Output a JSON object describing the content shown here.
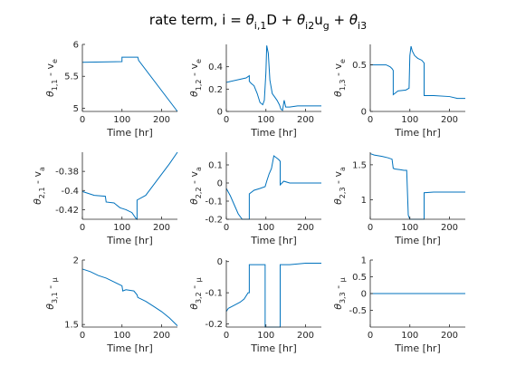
{
  "title": {
    "text": "rate term, i = ",
    "theta1": "θ",
    "sub1": "i,1",
    "mid1": "D + ",
    "theta2": "θ",
    "sub2": "i2",
    "mid2": "u",
    "sub3": "g",
    "mid3": " + ",
    "theta3": "θ",
    "sub4": "i3"
  },
  "line_color": "#0072bd",
  "chart_data": [
    {
      "type": "line",
      "xlabel": "Time [hr]",
      "ylabel": {
        "theta": "θ",
        "sub": "1,1",
        "rest": " - v",
        "tail": "e"
      },
      "xlim": [
        0,
        240
      ],
      "ylim": [
        4.95,
        6.0
      ],
      "xticks": [
        0,
        100,
        200
      ],
      "yticks": [
        5,
        5.5,
        6
      ],
      "ytick_labels": [
        "5",
        "5.5",
        "6"
      ],
      "x": [
        0,
        100,
        100,
        105,
        140,
        142,
        240
      ],
      "y": [
        5.72,
        5.73,
        5.8,
        5.8,
        5.8,
        5.75,
        4.95
      ]
    },
    {
      "type": "line",
      "xlabel": "Time [hr]",
      "ylabel": {
        "theta": "θ",
        "sub": "1,2",
        "rest": " - v",
        "tail": "e"
      },
      "xlim": [
        0,
        240
      ],
      "ylim": [
        0,
        0.6
      ],
      "xticks": [
        0,
        100,
        200
      ],
      "yticks": [
        0,
        0.2,
        0.4
      ],
      "ytick_labels": [
        "0",
        "0.2",
        "0.4"
      ],
      "x": [
        0,
        50,
        58,
        58,
        63,
        70,
        78,
        85,
        92,
        96,
        100,
        102,
        106,
        110,
        116,
        122,
        128,
        134,
        138,
        142,
        146,
        150,
        160,
        180,
        200,
        220,
        240
      ],
      "y": [
        0.26,
        0.3,
        0.32,
        0.27,
        0.25,
        0.23,
        0.16,
        0.08,
        0.06,
        0.1,
        0.35,
        0.59,
        0.52,
        0.28,
        0.16,
        0.13,
        0.1,
        0.06,
        0.02,
        0.01,
        0.1,
        0.04,
        0.04,
        0.05,
        0.05,
        0.05,
        0.05
      ]
    },
    {
      "type": "line",
      "xlabel": "Time [hr]",
      "ylabel": {
        "theta": "θ",
        "sub": "1,3",
        "rest": " - v",
        "tail": "e"
      },
      "xlim": [
        0,
        240
      ],
      "ylim": [
        0,
        0.72
      ],
      "xticks": [
        0,
        100,
        200
      ],
      "yticks": [
        0,
        0.5
      ],
      "ytick_labels": [
        "0",
        "0.5"
      ],
      "x": [
        0,
        40,
        50,
        55,
        58,
        58,
        70,
        90,
        98,
        100,
        103,
        106,
        112,
        120,
        130,
        136,
        136,
        160,
        200,
        220,
        240
      ],
      "y": [
        0.5,
        0.5,
        0.48,
        0.46,
        0.44,
        0.18,
        0.22,
        0.23,
        0.25,
        0.6,
        0.7,
        0.65,
        0.6,
        0.57,
        0.55,
        0.52,
        0.17,
        0.17,
        0.16,
        0.14,
        0.14
      ]
    },
    {
      "type": "line",
      "xlabel": "Time [hr]",
      "ylabel": {
        "theta": "θ",
        "sub": "2,1",
        "rest": " - v",
        "tail": "a"
      },
      "xlim": [
        0,
        240
      ],
      "ylim": [
        -0.43,
        -0.36
      ],
      "xticks": [
        0,
        100,
        200
      ],
      "yticks": [
        -0.42,
        -0.4,
        -0.38
      ],
      "ytick_labels": [
        "-0.42",
        "-0.4",
        "-0.38"
      ],
      "x": [
        0,
        30,
        58,
        60,
        80,
        95,
        110,
        125,
        135,
        138,
        138,
        160,
        180,
        200,
        220,
        240
      ],
      "y": [
        -0.401,
        -0.405,
        -0.406,
        -0.412,
        -0.413,
        -0.418,
        -0.42,
        -0.423,
        -0.429,
        -0.43,
        -0.41,
        -0.405,
        -0.394,
        -0.383,
        -0.372,
        -0.36
      ]
    },
    {
      "type": "line",
      "xlabel": "Time [hr]",
      "ylabel": {
        "theta": "θ",
        "sub": "2,2",
        "rest": " - v",
        "tail": "a"
      },
      "xlim": [
        0,
        240
      ],
      "ylim": [
        -0.2,
        0.17
      ],
      "xticks": [
        0,
        100,
        200
      ],
      "yticks": [
        -0.2,
        -0.1,
        0,
        0.1
      ],
      "ytick_labels": [
        "-0.2",
        "-0.1",
        "0",
        "0.1"
      ],
      "x": [
        0,
        10,
        20,
        30,
        40,
        50,
        58,
        58,
        70,
        85,
        98,
        102,
        108,
        114,
        120,
        126,
        132,
        136,
        136,
        145,
        160,
        180,
        200,
        220,
        240
      ],
      "y": [
        -0.03,
        -0.07,
        -0.12,
        -0.17,
        -0.2,
        -0.2,
        -0.2,
        -0.06,
        -0.04,
        -0.03,
        -0.02,
        0.01,
        0.05,
        0.08,
        0.15,
        0.14,
        0.13,
        0.12,
        -0.01,
        0.01,
        0.0,
        0.0,
        0.0,
        0.0,
        0.0
      ]
    },
    {
      "type": "line",
      "xlabel": "Time [hr]",
      "ylabel": {
        "theta": "θ",
        "sub": "2,3",
        "rest": " - v",
        "tail": "a"
      },
      "xlim": [
        0,
        240
      ],
      "ylim": [
        0.72,
        1.68
      ],
      "xticks": [
        0,
        100,
        200
      ],
      "yticks": [
        1,
        1.5
      ],
      "ytick_labels": [
        "1",
        "1.5"
      ],
      "x": [
        0,
        10,
        30,
        45,
        55,
        58,
        62,
        75,
        85,
        92,
        96,
        100,
        104,
        120,
        136,
        136,
        160,
        200,
        240
      ],
      "y": [
        1.66,
        1.64,
        1.62,
        1.6,
        1.58,
        1.45,
        1.44,
        1.43,
        1.42,
        1.42,
        0.78,
        0.72,
        0.72,
        0.72,
        0.72,
        1.1,
        1.11,
        1.11,
        1.11
      ]
    },
    {
      "type": "line",
      "xlabel": "Time [hr]",
      "ylabel": {
        "theta": "θ",
        "sub": "3,1",
        "rest": " - ",
        "tail": "μ"
      },
      "xlim": [
        0,
        240
      ],
      "ylim": [
        1.48,
        2.0
      ],
      "xticks": [
        0,
        100,
        200
      ],
      "yticks": [
        1.5,
        2
      ],
      "ytick_labels": [
        "1.5",
        "2"
      ],
      "x": [
        0,
        20,
        40,
        60,
        80,
        100,
        102,
        110,
        130,
        138,
        140,
        160,
        180,
        200,
        220,
        240
      ],
      "y": [
        1.93,
        1.91,
        1.88,
        1.86,
        1.83,
        1.8,
        1.76,
        1.77,
        1.76,
        1.73,
        1.71,
        1.68,
        1.64,
        1.6,
        1.55,
        1.49
      ]
    },
    {
      "type": "line",
      "xlabel": "Time [hr]",
      "ylabel": {
        "theta": "θ",
        "sub": "3,2",
        "rest": " - ",
        "tail": "μ"
      },
      "xlim": [
        0,
        240
      ],
      "ylim": [
        -0.21,
        0.005
      ],
      "xticks": [
        0,
        100,
        200
      ],
      "yticks": [
        -0.2,
        -0.1,
        0
      ],
      "ytick_labels": [
        "-0.2",
        "-0.1",
        "0"
      ],
      "x": [
        0,
        5,
        20,
        35,
        45,
        55,
        58,
        58,
        80,
        98,
        98,
        110,
        120,
        130,
        136,
        136,
        160,
        200,
        240
      ],
      "y": [
        -0.16,
        -0.15,
        -0.14,
        -0.13,
        -0.12,
        -0.1,
        -0.1,
        -0.01,
        -0.01,
        -0.01,
        -0.21,
        -0.21,
        -0.21,
        -0.21,
        -0.21,
        -0.01,
        -0.01,
        -0.005,
        -0.005
      ]
    },
    {
      "type": "line",
      "xlabel": "Time [hr]",
      "ylabel": {
        "theta": "θ",
        "sub": "3,3",
        "rest": " - ",
        "tail": "μ"
      },
      "xlim": [
        0,
        240
      ],
      "ylim": [
        -1,
        1
      ],
      "xticks": [
        0,
        100,
        200
      ],
      "yticks": [
        -0.5,
        0,
        0.5,
        1
      ],
      "ytick_labels": [
        "-0.5",
        "0",
        "0.5",
        "1"
      ],
      "x": [
        0,
        240
      ],
      "y": [
        0,
        0
      ]
    }
  ]
}
